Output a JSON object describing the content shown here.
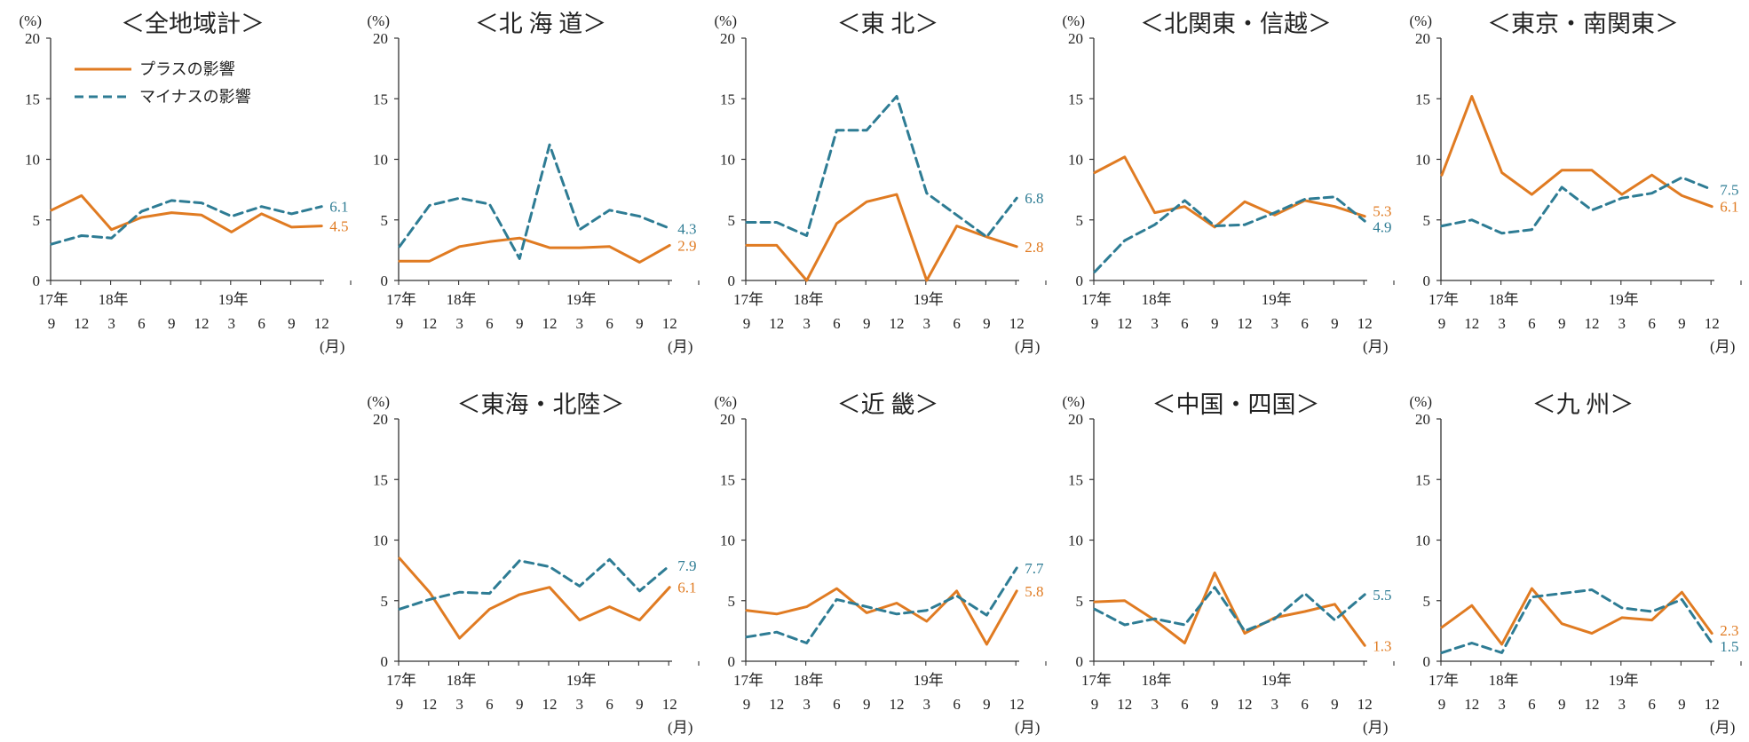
{
  "colors": {
    "plus": "#E07B22",
    "minus": "#2E7C94",
    "axis": "#333333"
  },
  "legend": {
    "plus": "プラスの影響",
    "minus": "マイナスの影響"
  },
  "axis_common": {
    "y_unit": "(%)",
    "month_unit": "(月)",
    "y_ticks": [
      "20",
      "15",
      "10",
      "5",
      "0"
    ],
    "ylim": [
      0,
      20
    ],
    "months": [
      "9",
      "12",
      "3",
      "6",
      "9",
      "12",
      "3",
      "6",
      "9",
      "12"
    ],
    "years": [
      "17年",
      "18年",
      "19年"
    ]
  },
  "chart_data": [
    {
      "type": "line",
      "title": "＜全地域計＞",
      "series": [
        {
          "name": "プラスの影響",
          "values": [
            5.8,
            7.0,
            4.2,
            5.2,
            5.6,
            5.4,
            4.0,
            5.5,
            4.4,
            4.5
          ],
          "end_label": "4.5"
        },
        {
          "name": "マイナスの影響",
          "values": [
            3.0,
            3.7,
            3.5,
            5.7,
            6.6,
            6.4,
            5.3,
            6.1,
            5.5,
            6.1
          ],
          "end_label": "6.1"
        }
      ]
    },
    {
      "type": "line",
      "title": "＜北 海 道＞",
      "series": [
        {
          "name": "プラスの影響",
          "values": [
            1.6,
            1.6,
            2.8,
            3.2,
            3.5,
            2.7,
            2.7,
            2.8,
            1.5,
            2.9
          ],
          "end_label": "2.9"
        },
        {
          "name": "マイナスの影響",
          "values": [
            2.8,
            6.2,
            6.8,
            6.3,
            1.8,
            11.2,
            4.2,
            5.8,
            5.3,
            4.3
          ],
          "end_label": "4.3"
        }
      ]
    },
    {
      "type": "line",
      "title": "＜東 北＞",
      "series": [
        {
          "name": "プラスの影響",
          "values": [
            2.9,
            2.9,
            0.0,
            4.7,
            6.5,
            7.1,
            0.0,
            4.5,
            3.6,
            2.8
          ],
          "end_label": "2.8"
        },
        {
          "name": "マイナスの影響",
          "values": [
            4.8,
            4.8,
            3.7,
            12.4,
            12.4,
            15.2,
            7.2,
            5.4,
            3.6,
            6.8
          ],
          "end_label": "6.8"
        }
      ]
    },
    {
      "type": "line",
      "title": "＜北関東・信越＞",
      "series": [
        {
          "name": "プラスの影響",
          "values": [
            8.9,
            10.2,
            5.6,
            6.1,
            4.4,
            6.5,
            5.4,
            6.6,
            6.1,
            5.3
          ],
          "end_label": "5.3"
        },
        {
          "name": "マイナスの影響",
          "values": [
            0.7,
            3.3,
            4.6,
            6.6,
            4.5,
            4.6,
            5.6,
            6.7,
            6.9,
            4.9
          ],
          "end_label": "4.9"
        }
      ]
    },
    {
      "type": "line",
      "title": "＜東京・南関東＞",
      "series": [
        {
          "name": "プラスの影響",
          "values": [
            8.7,
            15.2,
            8.9,
            7.1,
            9.1,
            9.1,
            7.1,
            8.7,
            7.0,
            6.1
          ],
          "end_label": "6.1"
        },
        {
          "name": "マイナスの影響",
          "values": [
            4.5,
            5.0,
            3.9,
            4.2,
            7.7,
            5.8,
            6.8,
            7.2,
            8.5,
            7.5
          ],
          "end_label": "7.5"
        }
      ]
    },
    {
      "type": "line",
      "title": "＜東海・北陸＞",
      "series": [
        {
          "name": "プラスの影響",
          "values": [
            8.5,
            5.7,
            1.9,
            4.3,
            5.5,
            6.1,
            3.4,
            4.5,
            3.4,
            6.1
          ],
          "end_label": "6.1"
        },
        {
          "name": "マイナスの影響",
          "values": [
            4.3,
            5.1,
            5.7,
            5.6,
            8.3,
            7.8,
            6.2,
            8.4,
            5.8,
            7.9
          ],
          "end_label": "7.9"
        }
      ]
    },
    {
      "type": "line",
      "title": "＜近 畿＞",
      "series": [
        {
          "name": "プラスの影響",
          "values": [
            4.2,
            3.9,
            4.5,
            6.0,
            4.0,
            4.8,
            3.3,
            5.8,
            1.4,
            5.8
          ],
          "end_label": "5.8"
        },
        {
          "name": "マイナスの影響",
          "values": [
            2.0,
            2.4,
            1.5,
            5.1,
            4.5,
            3.9,
            4.2,
            5.4,
            3.8,
            7.7
          ],
          "end_label": "7.7"
        }
      ]
    },
    {
      "type": "line",
      "title": "＜中国・四国＞",
      "series": [
        {
          "name": "プラスの影響",
          "values": [
            4.9,
            5.0,
            3.4,
            1.5,
            7.3,
            2.3,
            3.6,
            4.1,
            4.7,
            1.3
          ],
          "end_label": "1.3"
        },
        {
          "name": "マイナスの影響",
          "values": [
            4.3,
            3.0,
            3.5,
            3.0,
            6.1,
            2.5,
            3.5,
            5.6,
            3.4,
            5.5
          ],
          "end_label": "5.5"
        }
      ]
    },
    {
      "type": "line",
      "title": "＜九 州＞",
      "series": [
        {
          "name": "プラスの影響",
          "values": [
            2.8,
            4.6,
            1.4,
            6.0,
            3.1,
            2.3,
            3.6,
            3.4,
            5.7,
            2.3
          ],
          "end_label": "2.3"
        },
        {
          "name": "マイナスの影響",
          "values": [
            0.7,
            1.5,
            0.7,
            5.3,
            5.6,
            5.9,
            4.4,
            4.1,
            5.1,
            1.5
          ],
          "end_label": "1.5"
        }
      ]
    }
  ]
}
